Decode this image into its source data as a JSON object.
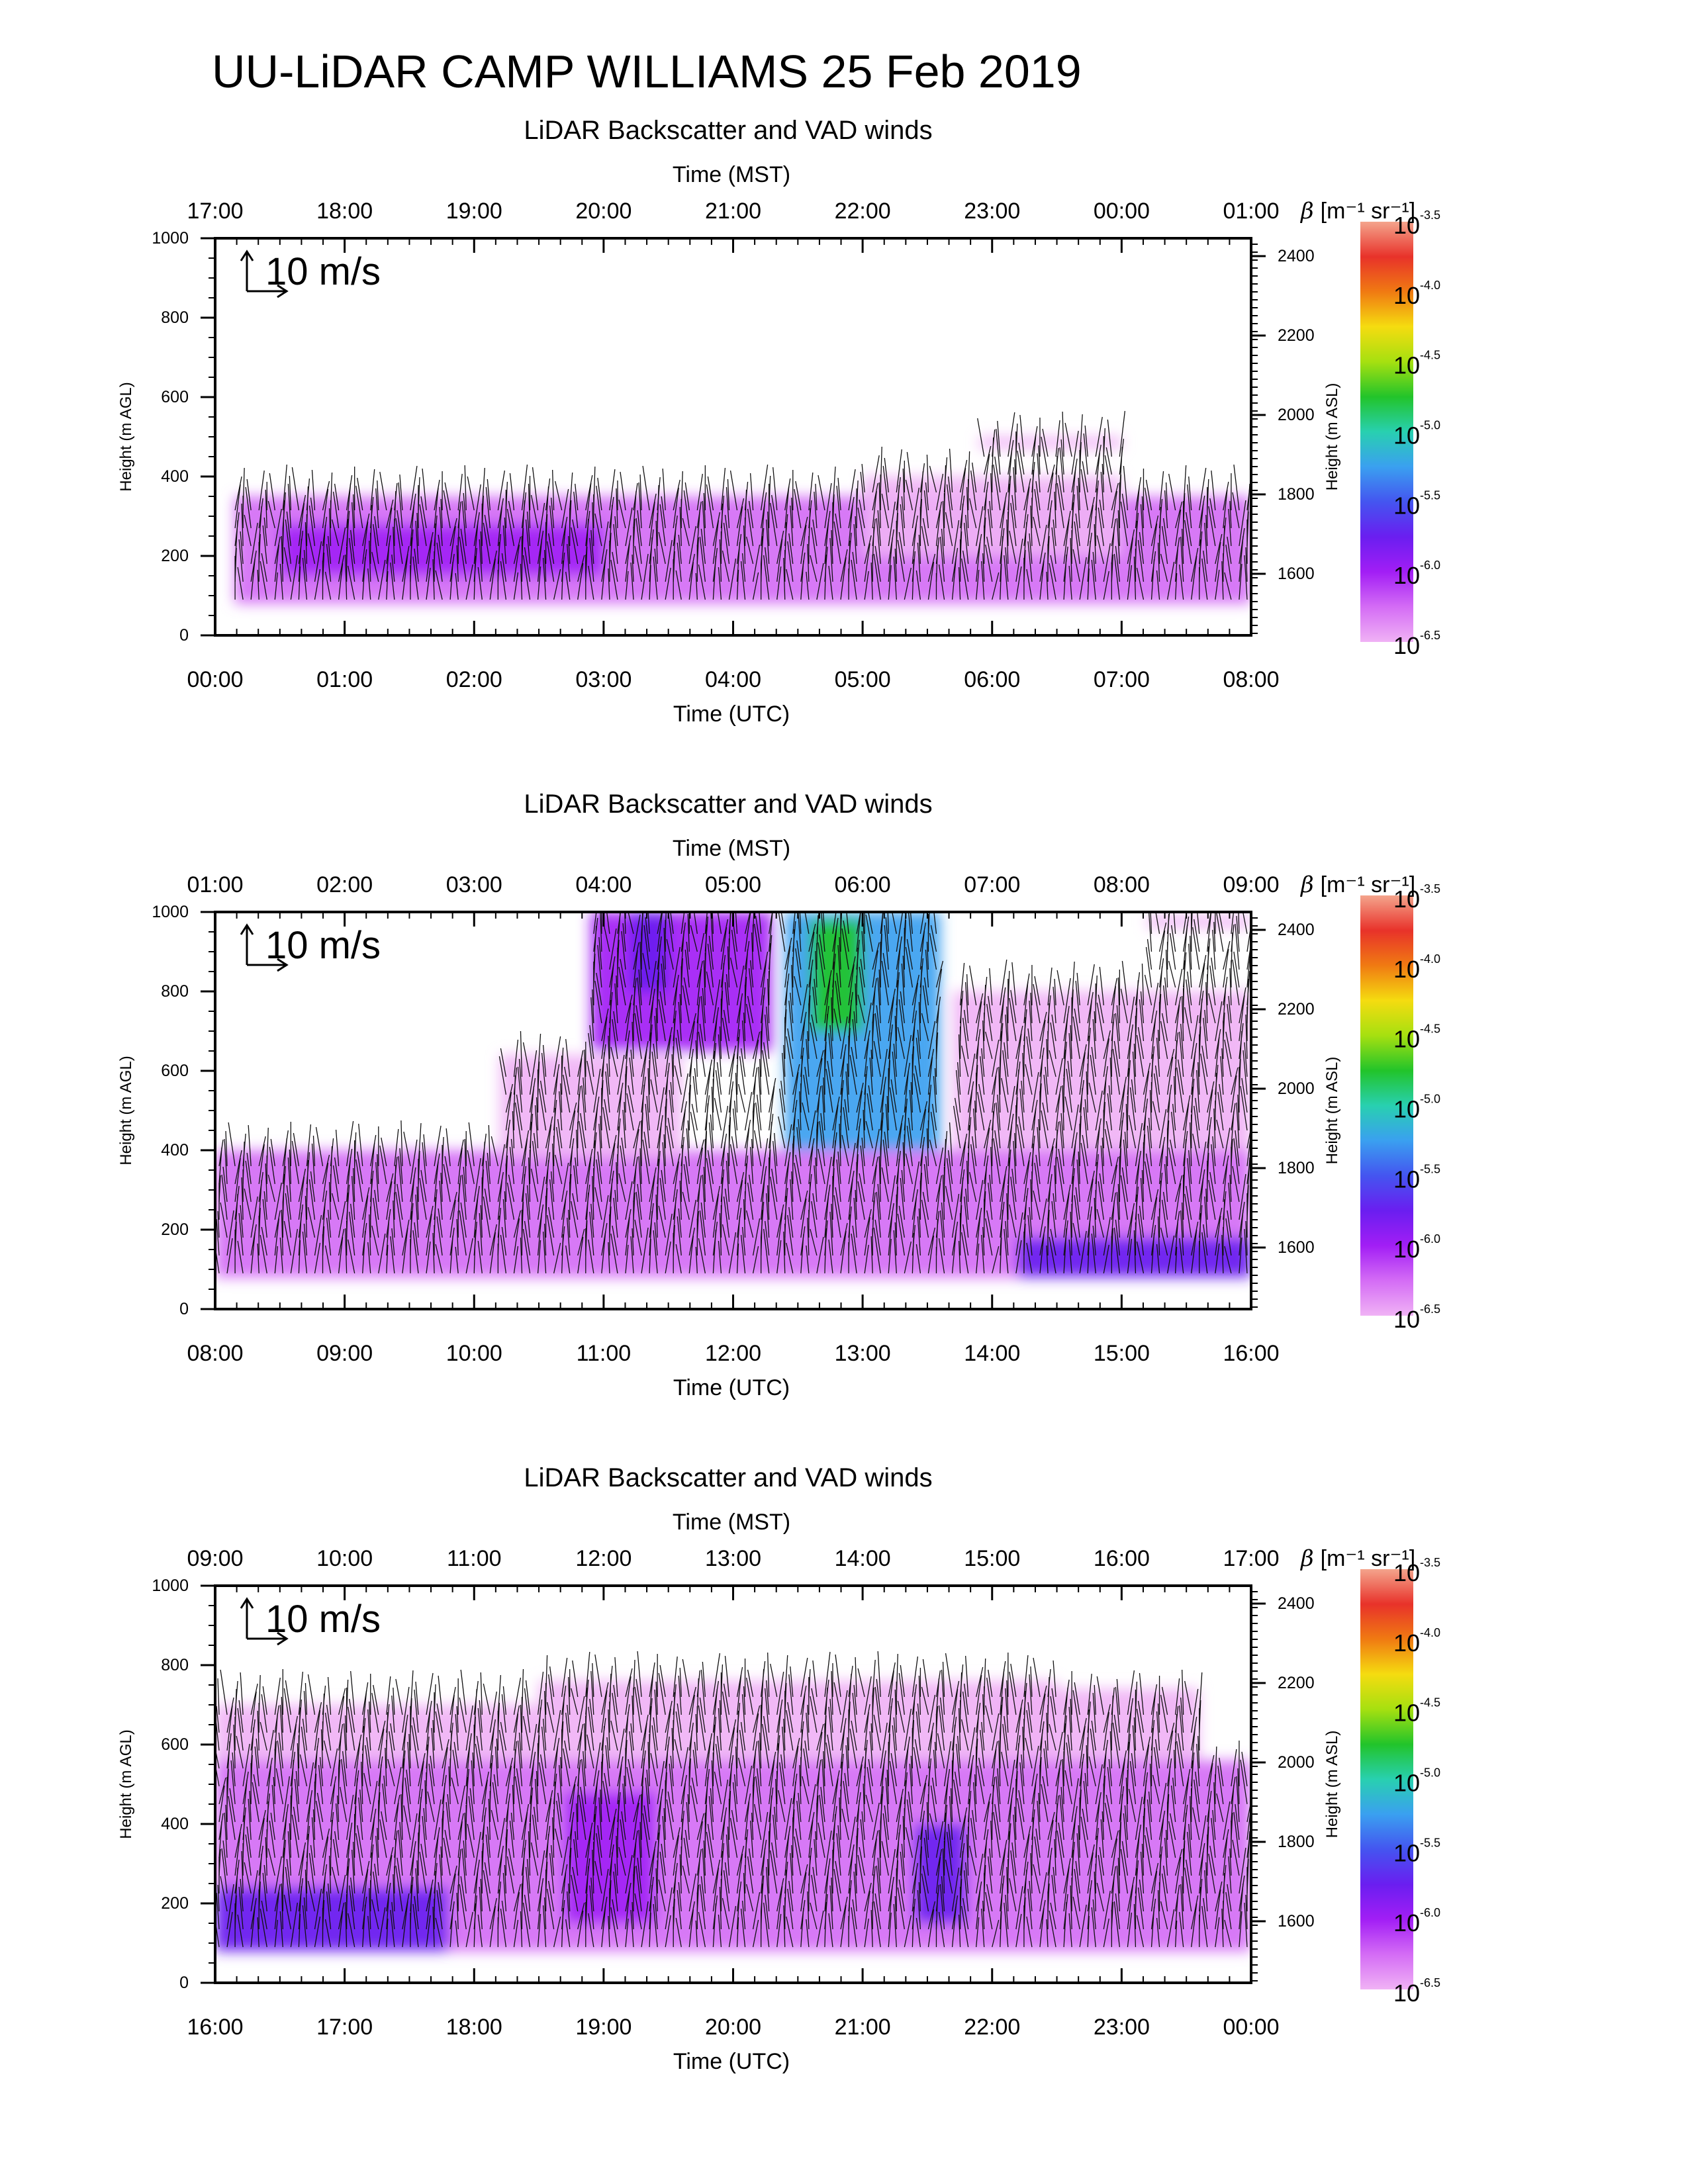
{
  "main_title": "UU-LiDAR CAMP WILLIAMS 25 Feb 2019",
  "colorbar": {
    "label_symbol": "β",
    "label_units": "[m⁻¹ sr⁻¹]",
    "ticks": [
      {
        "base": "10",
        "exp": "-3.5"
      },
      {
        "base": "10",
        "exp": "-4.0"
      },
      {
        "base": "10",
        "exp": "-4.5"
      },
      {
        "base": "10",
        "exp": "-5.0"
      },
      {
        "base": "10",
        "exp": "-5.5"
      },
      {
        "base": "10",
        "exp": "-6.0"
      },
      {
        "base": "10",
        "exp": "-6.5"
      }
    ],
    "colors_top_to_bottom": [
      "#f4a48c",
      "#e8322a",
      "#f07a12",
      "#f5dc10",
      "#a6e010",
      "#22c42a",
      "#28d0b0",
      "#3aa0f0",
      "#4455f0",
      "#6a1ef0",
      "#a21ef5",
      "#d46cf5",
      "#f0b2f5"
    ]
  },
  "chart_data": [
    {
      "type": "heatmap",
      "subtitle": "LiDAR Backscatter and VAD winds",
      "top_axis_title": "Time (MST)",
      "top_ticks": [
        "17:00",
        "18:00",
        "19:00",
        "20:00",
        "21:00",
        "22:00",
        "23:00",
        "00:00",
        "01:00"
      ],
      "xlabel": "Time (UTC)",
      "x_ticks": [
        "00:00",
        "01:00",
        "02:00",
        "03:00",
        "04:00",
        "05:00",
        "06:00",
        "07:00",
        "08:00"
      ],
      "xlim_hours": [
        0,
        8
      ],
      "ylabel": "Height (m AGL)",
      "y_ticks": [
        0,
        200,
        400,
        600,
        800,
        1000
      ],
      "ylim": [
        0,
        1000
      ],
      "y2label": "Height (m ASL)",
      "y2_ticks": [
        1600,
        1800,
        2000,
        2200,
        2400
      ],
      "y2lim": [
        1445,
        2445
      ],
      "wind_scale_label": "10 m/s",
      "backscatter_regions": [
        {
          "t": [
            0.15,
            8.0
          ],
          "z": [
            80,
            350
          ],
          "log_beta": -6.3
        },
        {
          "t": [
            5.0,
            7.0
          ],
          "z": [
            200,
            400
          ],
          "log_beta": -6.4
        },
        {
          "t": [
            5.9,
            7.0
          ],
          "z": [
            470,
            500
          ],
          "log_beta": -6.4
        },
        {
          "t": [
            0.5,
            3.0
          ],
          "z": [
            150,
            280
          ],
          "log_beta": -6.0
        }
      ]
    },
    {
      "type": "heatmap",
      "subtitle": "LiDAR Backscatter and VAD winds",
      "top_axis_title": "Time (MST)",
      "top_ticks": [
        "01:00",
        "02:00",
        "03:00",
        "04:00",
        "05:00",
        "06:00",
        "07:00",
        "08:00",
        "09:00"
      ],
      "xlabel": "Time (UTC)",
      "x_ticks": [
        "08:00",
        "09:00",
        "10:00",
        "11:00",
        "12:00",
        "13:00",
        "14:00",
        "15:00",
        "16:00"
      ],
      "xlim_hours": [
        8,
        16
      ],
      "ylabel": "Height (m AGL)",
      "y_ticks": [
        0,
        200,
        400,
        600,
        800,
        1000
      ],
      "ylim": [
        0,
        1000
      ],
      "y2label": "Height (m ASL)",
      "y2_ticks": [
        1600,
        1800,
        2000,
        2200,
        2400
      ],
      "y2lim": [
        1445,
        2445
      ],
      "wind_scale_label": "10 m/s",
      "backscatter_regions": [
        {
          "t": [
            8.0,
            16.0
          ],
          "z": [
            80,
            400
          ],
          "log_beta": -6.2
        },
        {
          "t": [
            10.2,
            11.6
          ],
          "z": [
            380,
            640
          ],
          "log_beta": -6.4
        },
        {
          "t": [
            10.9,
            12.3
          ],
          "z": [
            650,
            1000
          ],
          "log_beta": -6.0
        },
        {
          "t": [
            11.2,
            11.5
          ],
          "z": [
            800,
            1000
          ],
          "log_beta": -5.7
        },
        {
          "t": [
            13.7,
            16.0
          ],
          "z": [
            400,
            800
          ],
          "log_beta": -6.4
        },
        {
          "t": [
            12.4,
            13.6
          ],
          "z": [
            400,
            1000
          ],
          "log_beta": -5.2
        },
        {
          "t": [
            12.6,
            13.0
          ],
          "z": [
            700,
            980
          ],
          "log_beta": -4.7
        },
        {
          "t": [
            15.2,
            16.0
          ],
          "z": [
            960,
            990
          ],
          "log_beta": -6.4
        },
        {
          "t": [
            14.2,
            16.0
          ],
          "z": [
            80,
            180
          ],
          "log_beta": -5.8
        }
      ]
    },
    {
      "type": "heatmap",
      "subtitle": "LiDAR Backscatter and VAD winds",
      "top_axis_title": "Time (MST)",
      "top_ticks": [
        "09:00",
        "10:00",
        "11:00",
        "12:00",
        "13:00",
        "14:00",
        "15:00",
        "16:00",
        "17:00"
      ],
      "xlabel": "Time (UTC)",
      "x_ticks": [
        "16:00",
        "17:00",
        "18:00",
        "19:00",
        "20:00",
        "21:00",
        "22:00",
        "23:00",
        "00:00"
      ],
      "xlim_hours": [
        16,
        24
      ],
      "ylabel": "Height (m AGL)",
      "y_ticks": [
        0,
        200,
        400,
        600,
        800,
        1000
      ],
      "ylim": [
        0,
        1000
      ],
      "y2label": "Height (m ASL)",
      "y2_ticks": [
        1600,
        1800,
        2000,
        2200,
        2400
      ],
      "y2lim": [
        1445,
        2445
      ],
      "wind_scale_label": "10 m/s",
      "backscatter_regions": [
        {
          "t": [
            16.0,
            24.0
          ],
          "z": [
            80,
            560
          ],
          "log_beta": -6.2
        },
        {
          "t": [
            16.0,
            18.5
          ],
          "z": [
            560,
            700
          ],
          "log_beta": -6.5
        },
        {
          "t": [
            18.5,
            22.5
          ],
          "z": [
            560,
            760
          ],
          "log_beta": -6.4
        },
        {
          "t": [
            22.0,
            23.6
          ],
          "z": [
            560,
            740
          ],
          "log_beta": -6.4
        },
        {
          "t": [
            16.0,
            17.8
          ],
          "z": [
            80,
            240
          ],
          "log_beta": -5.8
        },
        {
          "t": [
            18.7,
            19.4
          ],
          "z": [
            150,
            480
          ],
          "log_beta": -5.9
        },
        {
          "t": [
            21.4,
            21.8
          ],
          "z": [
            150,
            400
          ],
          "log_beta": -5.7
        }
      ]
    }
  ]
}
